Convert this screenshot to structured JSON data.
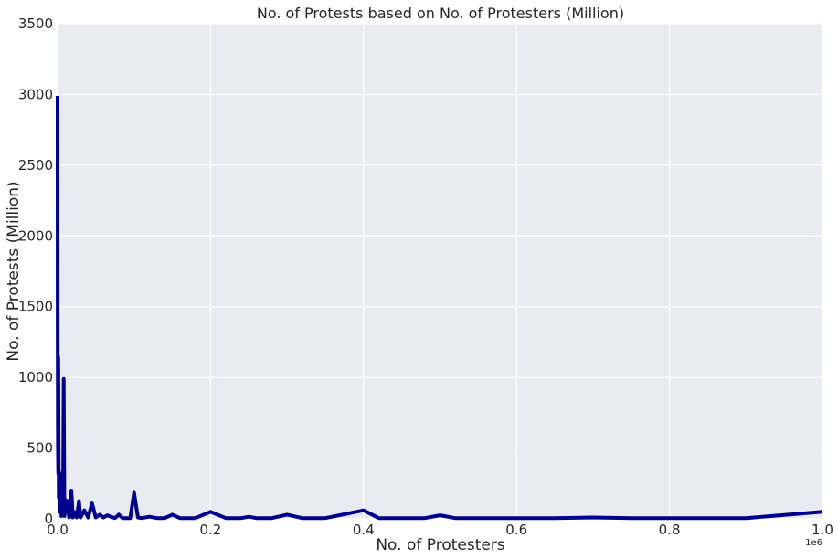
{
  "chart_data": {
    "type": "line",
    "title": "No. of Protests based on No. of Protesters (Million)",
    "xlabel": "No. of Protesters",
    "ylabel": "No. of Protests (Million)",
    "x_offset_label": "1e6",
    "xlim": [
      0,
      1000000
    ],
    "ylim": [
      0,
      3500
    ],
    "x_ticks": [
      0,
      200000,
      400000,
      600000,
      800000,
      1000000
    ],
    "x_tick_labels": [
      "0.0",
      "0.2",
      "0.4",
      "0.6",
      "0.8",
      "1.0"
    ],
    "y_ticks": [
      0,
      500,
      1000,
      1500,
      2000,
      2500,
      3000,
      3500
    ],
    "y_tick_labels": [
      "0",
      "500",
      "1000",
      "1500",
      "2000",
      "2500",
      "3000",
      "3500"
    ],
    "grid": true,
    "colors": {
      "background": "#eaeaf2",
      "grid": "#ffffff",
      "line": "#00008b"
    },
    "series": [
      {
        "x": [
          0,
          100,
          200,
          300,
          500,
          800,
          1000,
          1500,
          2000,
          3000,
          4000,
          5000,
          6000,
          7000,
          8000,
          9000,
          10000,
          12000,
          15000,
          18000,
          20000,
          22000,
          25000,
          28000,
          30000,
          32000,
          35000,
          40000,
          45000,
          50000,
          55000,
          60000,
          65000,
          70000,
          75000,
          80000,
          85000,
          90000,
          95000,
          100000,
          105000,
          110000,
          120000,
          130000,
          140000,
          150000,
          160000,
          180000,
          200000,
          220000,
          240000,
          250000,
          260000,
          280000,
          300000,
          320000,
          350000,
          400000,
          420000,
          450000,
          480000,
          500000,
          520000,
          550000,
          600000,
          650000,
          700000,
          750000,
          800000,
          850000,
          900000,
          1000000
        ],
        "y": [
          2990,
          1350,
          1140,
          700,
          500,
          320,
          1140,
          150,
          300,
          50,
          320,
          20,
          160,
          80,
          990,
          20,
          60,
          130,
          10,
          200,
          10,
          50,
          10,
          125,
          10,
          30,
          60,
          10,
          110,
          10,
          30,
          10,
          25,
          15,
          5,
          30,
          5,
          5,
          5,
          185,
          10,
          5,
          15,
          5,
          5,
          30,
          5,
          5,
          50,
          5,
          5,
          15,
          5,
          5,
          30,
          5,
          5,
          60,
          5,
          5,
          5,
          25,
          5,
          5,
          5,
          5,
          10,
          5,
          5,
          5,
          5,
          50
        ]
      }
    ]
  }
}
